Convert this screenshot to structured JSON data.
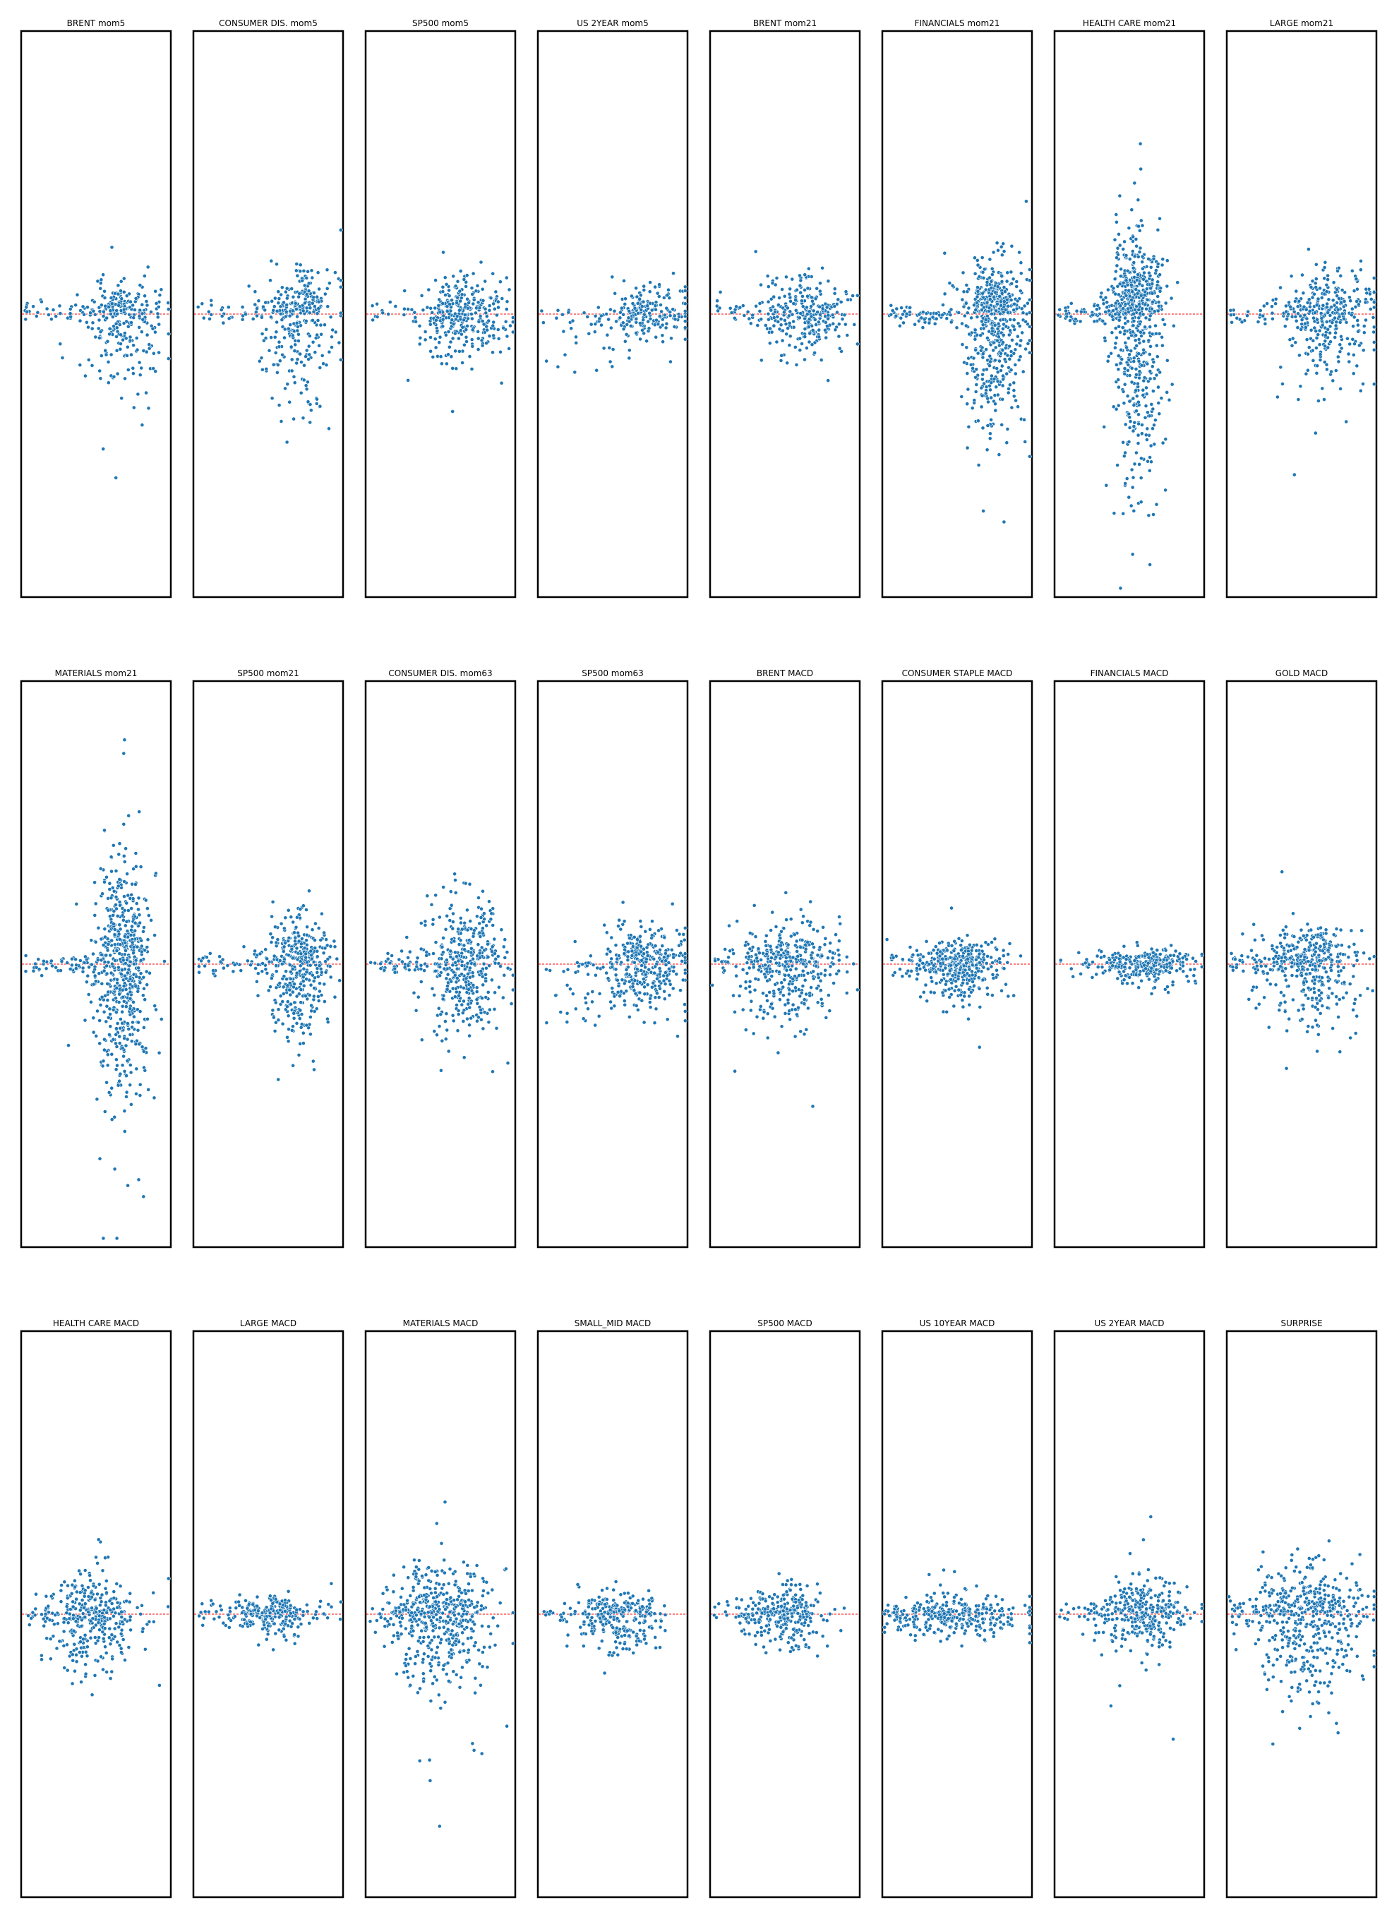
{
  "colors": {
    "points": "#1f77b4",
    "point_edge": "#ffffff",
    "zero_line": "#ff0000",
    "frame": "#000000"
  },
  "chart_data": [
    {
      "type": "scatter",
      "title": "BRENT mom5",
      "xlim": [
        -1,
        1
      ],
      "ylim": [
        -1.6,
        1.6
      ],
      "zero_line": 0,
      "grid": false,
      "n": 300,
      "seed": 11,
      "x_mode": "right",
      "x_center": 0.35,
      "x_spread": 0.28,
      "y_up": 0.16,
      "y_down": 0.38,
      "tail": "down"
    },
    {
      "type": "scatter",
      "title": "CONSUMER DIS. mom5",
      "xlim": [
        -1,
        1
      ],
      "ylim": [
        -1.6,
        1.6
      ],
      "zero_line": 0,
      "grid": false,
      "n": 330,
      "seed": 12,
      "x_mode": "right",
      "x_center": 0.4,
      "x_spread": 0.25,
      "y_up": 0.22,
      "y_down": 0.5,
      "tail": "down"
    },
    {
      "type": "scatter",
      "title": "SP500 mom5",
      "xlim": [
        -1,
        1
      ],
      "ylim": [
        -1.6,
        1.6
      ],
      "zero_line": 0,
      "grid": false,
      "n": 340,
      "seed": 13,
      "x_mode": "right",
      "x_center": 0.3,
      "x_spread": 0.3,
      "y_up": 0.2,
      "y_down": 0.22,
      "tail": "none"
    },
    {
      "type": "scatter",
      "title": "US 2YEAR mom5",
      "xlim": [
        -1,
        1
      ],
      "ylim": [
        -1.6,
        1.6
      ],
      "zero_line": 0,
      "grid": false,
      "n": 230,
      "seed": 14,
      "x_mode": "right",
      "x_center": 0.45,
      "x_spread": 0.3,
      "y_up": 0.15,
      "y_down": 0.15,
      "tail": "leftdown"
    },
    {
      "type": "scatter",
      "title": "BRENT mom21",
      "xlim": [
        -1,
        1
      ],
      "ylim": [
        -1.6,
        1.6
      ],
      "zero_line": 0,
      "grid": false,
      "n": 300,
      "seed": 15,
      "x_mode": "right",
      "x_center": 0.25,
      "x_spread": 0.3,
      "y_up": 0.2,
      "y_down": 0.2,
      "tail": "none"
    },
    {
      "type": "scatter",
      "title": "FINANCIALS mom21",
      "xlim": [
        -1,
        1
      ],
      "ylim": [
        -1.6,
        1.6
      ],
      "zero_line": 0,
      "grid": false,
      "n": 620,
      "seed": 16,
      "x_mode": "right",
      "x_center": 0.5,
      "x_spread": 0.2,
      "y_up": 0.25,
      "y_down": 0.6,
      "tail": "down"
    },
    {
      "type": "scatter",
      "title": "HEALTH CARE mom21",
      "xlim": [
        -1,
        1
      ],
      "ylim": [
        -1.6,
        1.6
      ],
      "zero_line": 0,
      "grid": false,
      "n": 680,
      "seed": 17,
      "x_mode": "center",
      "x_center": 0.1,
      "x_spread": 0.18,
      "y_up": 0.4,
      "y_down": 0.95,
      "tail": "down"
    },
    {
      "type": "scatter",
      "title": "LARGE mom21",
      "xlim": [
        -1,
        1
      ],
      "ylim": [
        -1.6,
        1.6
      ],
      "zero_line": 0,
      "grid": false,
      "n": 380,
      "seed": 18,
      "x_mode": "right",
      "x_center": 0.35,
      "x_spread": 0.3,
      "y_up": 0.22,
      "y_down": 0.35,
      "tail": "down"
    },
    {
      "type": "scatter",
      "title": "MATERIALS mom21",
      "xlim": [
        -1,
        1
      ],
      "ylim": [
        -1.6,
        1.6
      ],
      "zero_line": 0,
      "grid": false,
      "n": 650,
      "seed": 21,
      "x_mode": "center",
      "x_center": 0.35,
      "x_spread": 0.18,
      "y_up": 0.5,
      "y_down": 0.75,
      "tail": "both"
    },
    {
      "type": "scatter",
      "title": "SP500 mom21",
      "xlim": [
        -1,
        1
      ],
      "ylim": [
        -1.6,
        1.6
      ],
      "zero_line": 0,
      "grid": false,
      "n": 430,
      "seed": 22,
      "x_mode": "right",
      "x_center": 0.4,
      "x_spread": 0.22,
      "y_up": 0.25,
      "y_down": 0.4,
      "tail": "down"
    },
    {
      "type": "scatter",
      "title": "CONSUMER DIS. mom63",
      "xlim": [
        -1,
        1
      ],
      "ylim": [
        -1.6,
        1.6
      ],
      "zero_line": 0,
      "grid": false,
      "n": 450,
      "seed": 23,
      "x_mode": "right",
      "x_center": 0.3,
      "x_spread": 0.25,
      "y_up": 0.35,
      "y_down": 0.4,
      "tail": "up"
    },
    {
      "type": "scatter",
      "title": "SP500 mom63",
      "xlim": [
        -1,
        1
      ],
      "ylim": [
        -1.6,
        1.6
      ],
      "zero_line": 0,
      "grid": false,
      "n": 380,
      "seed": 24,
      "x_mode": "right",
      "x_center": 0.4,
      "x_spread": 0.3,
      "y_up": 0.2,
      "y_down": 0.25,
      "tail": "leftdown"
    },
    {
      "type": "scatter",
      "title": "BRENT MACD",
      "xlim": [
        -1,
        1
      ],
      "ylim": [
        -1.6,
        1.6
      ],
      "zero_line": 0,
      "grid": false,
      "n": 420,
      "seed": 25,
      "x_mode": "center",
      "x_center": 0.05,
      "x_spread": 0.35,
      "y_up": 0.22,
      "y_down": 0.35,
      "tail": "down"
    },
    {
      "type": "scatter",
      "title": "CONSUMER STAPLE MACD",
      "xlim": [
        -1,
        1
      ],
      "ylim": [
        -1.6,
        1.6
      ],
      "zero_line": 0,
      "grid": false,
      "n": 380,
      "seed": 26,
      "x_mode": "center",
      "x_center": 0.0,
      "x_spread": 0.3,
      "y_up": 0.12,
      "y_down": 0.2,
      "tail": "none"
    },
    {
      "type": "scatter",
      "title": "FINANCIALS MACD",
      "xlim": [
        -1,
        1
      ],
      "ylim": [
        -1.6,
        1.6
      ],
      "zero_line": 0,
      "grid": false,
      "n": 320,
      "seed": 27,
      "x_mode": "right",
      "x_center": 0.25,
      "x_spread": 0.3,
      "y_up": 0.08,
      "y_down": 0.1,
      "tail": "none"
    },
    {
      "type": "scatter",
      "title": "GOLD MACD",
      "xlim": [
        -1,
        1
      ],
      "ylim": [
        -1.6,
        1.6
      ],
      "zero_line": 0,
      "grid": false,
      "n": 420,
      "seed": 28,
      "x_mode": "center",
      "x_center": 0.1,
      "x_spread": 0.35,
      "y_up": 0.2,
      "y_down": 0.35,
      "tail": "down"
    },
    {
      "type": "scatter",
      "title": "HEALTH CARE MACD",
      "xlim": [
        -1,
        1
      ],
      "ylim": [
        -1.6,
        1.6
      ],
      "zero_line": 0,
      "grid": false,
      "n": 360,
      "seed": 31,
      "x_mode": "center",
      "x_center": -0.05,
      "x_spread": 0.3,
      "y_up": 0.2,
      "y_down": 0.3,
      "tail": "down"
    },
    {
      "type": "scatter",
      "title": "LARGE MACD",
      "xlim": [
        -1,
        1
      ],
      "ylim": [
        -1.6,
        1.6
      ],
      "zero_line": 0,
      "grid": false,
      "n": 260,
      "seed": 32,
      "x_mode": "center",
      "x_center": 0.05,
      "x_spread": 0.3,
      "y_up": 0.08,
      "y_down": 0.12,
      "tail": "none"
    },
    {
      "type": "scatter",
      "title": "MATERIALS MACD",
      "xlim": [
        -1,
        1
      ],
      "ylim": [
        -1.6,
        1.6
      ],
      "zero_line": 0,
      "grid": false,
      "n": 520,
      "seed": 33,
      "x_mode": "center",
      "x_center": 0.0,
      "x_spread": 0.35,
      "y_up": 0.25,
      "y_down": 0.45,
      "tail": "down"
    },
    {
      "type": "scatter",
      "title": "SMALL_MID MACD",
      "xlim": [
        -1,
        1
      ],
      "ylim": [
        -1.6,
        1.6
      ],
      "zero_line": 0,
      "grid": false,
      "n": 300,
      "seed": 34,
      "x_mode": "center",
      "x_center": 0.1,
      "x_spread": 0.28,
      "y_up": 0.12,
      "y_down": 0.2,
      "tail": "none"
    },
    {
      "type": "scatter",
      "title": "SP500 MACD",
      "xlim": [
        -1,
        1
      ],
      "ylim": [
        -1.6,
        1.6
      ],
      "zero_line": 0,
      "grid": false,
      "n": 300,
      "seed": 35,
      "x_mode": "center",
      "x_center": 0.0,
      "x_spread": 0.28,
      "y_up": 0.15,
      "y_down": 0.18,
      "tail": "none"
    },
    {
      "type": "scatter",
      "title": "US 10YEAR MACD",
      "xlim": [
        -1,
        1
      ],
      "ylim": [
        -1.6,
        1.6
      ],
      "zero_line": 0,
      "grid": false,
      "n": 320,
      "seed": 36,
      "x_mode": "wide",
      "x_center": 0.0,
      "x_spread": 0.45,
      "y_up": 0.1,
      "y_down": 0.12,
      "tail": "none"
    },
    {
      "type": "scatter",
      "title": "US 2YEAR MACD",
      "xlim": [
        -1,
        1
      ],
      "ylim": [
        -1.6,
        1.6
      ],
      "zero_line": 0,
      "grid": false,
      "n": 360,
      "seed": 37,
      "x_mode": "right",
      "x_center": 0.2,
      "x_spread": 0.3,
      "y_up": 0.18,
      "y_down": 0.2,
      "tail": "none"
    },
    {
      "type": "scatter",
      "title": "SURPRISE",
      "xlim": [
        -1,
        1
      ],
      "ylim": [
        -1.6,
        1.6
      ],
      "zero_line": 0,
      "grid": false,
      "n": 520,
      "seed": 38,
      "x_mode": "wide",
      "x_center": 0.1,
      "x_spread": 0.4,
      "y_up": 0.25,
      "y_down": 0.45,
      "tail": "down"
    }
  ]
}
